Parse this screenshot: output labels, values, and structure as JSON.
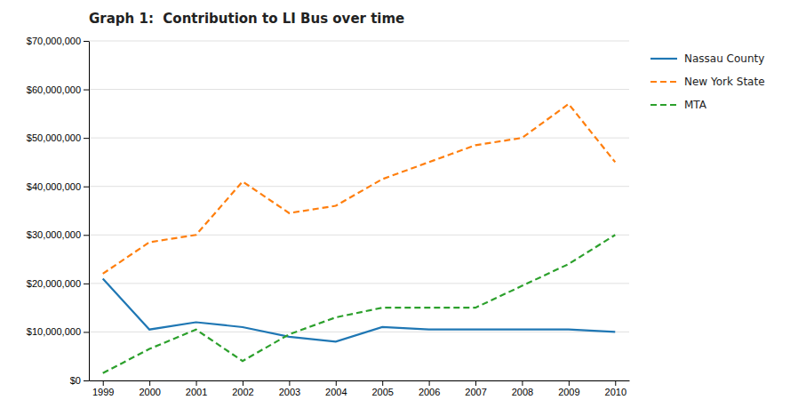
{
  "chart_data": {
    "type": "line",
    "title": "Graph 1:  Contribution to LI Bus over time",
    "x": [
      1999,
      2000,
      2001,
      2002,
      2003,
      2004,
      2005,
      2006,
      2007,
      2008,
      2009,
      2010
    ],
    "series": [
      {
        "name": "Nassau County",
        "line_style": "solid",
        "values": [
          21000000,
          10500000,
          12000000,
          11000000,
          9000000,
          8000000,
          11000000,
          10500000,
          10500000,
          10500000,
          10500000,
          10000000
        ]
      },
      {
        "name": "New York State",
        "line_style": "dashed",
        "values": [
          22000000,
          28500000,
          30000000,
          41000000,
          34500000,
          36000000,
          41500000,
          45000000,
          48500000,
          50000000,
          57000000,
          45000000
        ]
      },
      {
        "name": "MTA",
        "line_style": "dashed",
        "values": [
          1500000,
          6500000,
          10500000,
          4000000,
          9500000,
          13000000,
          15000000,
          15000000,
          15000000,
          19500000,
          24000000,
          30000000
        ]
      }
    ],
    "xlim": [
      1998.7,
      2010.3
    ],
    "xticks": [
      1999,
      2000,
      2001,
      2002,
      2003,
      2004,
      2005,
      2006,
      2007,
      2008,
      2009,
      2010
    ],
    "ylim": [
      0,
      70000000
    ],
    "yticks": [
      {
        "value": 0,
        "label": "$0"
      },
      {
        "value": 10000000,
        "label": "$10,000,000"
      },
      {
        "value": 20000000,
        "label": "$20,000,000"
      },
      {
        "value": 30000000,
        "label": "$30,000,000"
      },
      {
        "value": 40000000,
        "label": "$40,000,000"
      },
      {
        "value": 50000000,
        "label": "$50,000,000"
      },
      {
        "value": 60000000,
        "label": "$60,000,000"
      },
      {
        "value": 70000000,
        "label": "$70,000,000"
      }
    ],
    "grid": true,
    "legend": "right"
  }
}
